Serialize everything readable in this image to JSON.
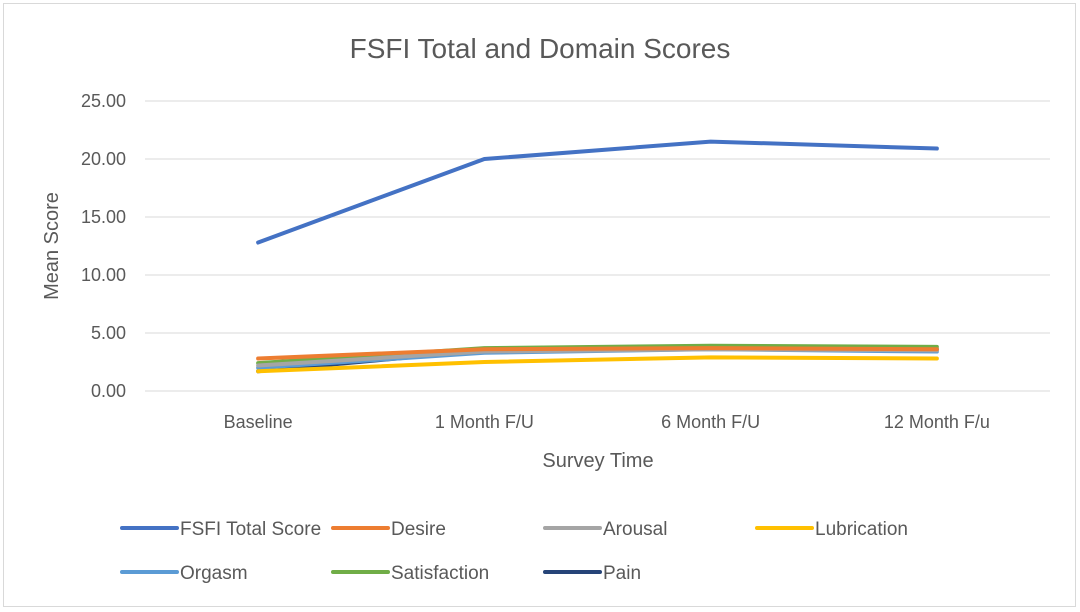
{
  "chart_data": {
    "type": "line",
    "title": "FSFI Total and Domain Scores",
    "xlabel": "Survey Time",
    "ylabel": "Mean Score",
    "categories": [
      "Baseline",
      "1 Month F/U",
      "6 Month F/U",
      "12 Month F/u"
    ],
    "ylim": [
      0,
      25
    ],
    "yticks": [
      "0.00",
      "5.00",
      "10.00",
      "15.00",
      "20.00",
      "25.00"
    ],
    "grid": true,
    "legend_position": "bottom",
    "series": [
      {
        "name": "FSFI Total Score",
        "color": "#4472c4",
        "values": [
          12.8,
          20.0,
          21.5,
          20.9
        ]
      },
      {
        "name": "Desire",
        "color": "#ed7d31",
        "values": [
          2.8,
          3.6,
          3.7,
          3.6
        ]
      },
      {
        "name": "Arousal",
        "color": "#a5a5a5",
        "values": [
          2.2,
          3.4,
          3.6,
          3.5
        ]
      },
      {
        "name": "Lubrication",
        "color": "#ffc000",
        "values": [
          1.7,
          2.5,
          2.9,
          2.8
        ]
      },
      {
        "name": "Orgasm",
        "color": "#5b9bd5",
        "values": [
          2.0,
          3.3,
          3.6,
          3.4
        ]
      },
      {
        "name": "Satisfaction",
        "color": "#70ad47",
        "values": [
          2.4,
          3.7,
          3.9,
          3.8
        ]
      },
      {
        "name": "Pain",
        "color": "#264478",
        "values": [
          1.7,
          3.5,
          3.8,
          3.6
        ]
      }
    ]
  }
}
